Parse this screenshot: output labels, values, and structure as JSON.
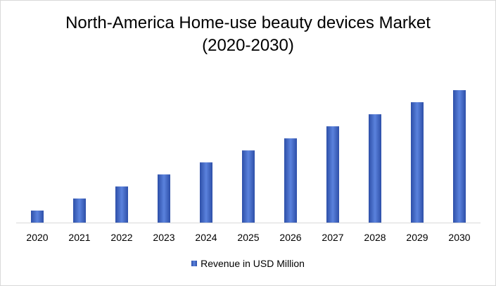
{
  "title_line1": "North-America Home-use beauty devices Market",
  "title_line2": "(2020-2030)",
  "chart_data": {
    "type": "bar",
    "title": "North-America Home-use beauty devices Market (2020-2030)",
    "categories": [
      "2020",
      "2021",
      "2022",
      "2023",
      "2024",
      "2025",
      "2026",
      "2027",
      "2028",
      "2029",
      "2030"
    ],
    "series": [
      {
        "name": "Revenue in USD Million",
        "values": [
          1.0,
          2.0,
          3.0,
          4.0,
          5.0,
          6.0,
          7.0,
          8.0,
          9.0,
          10.0,
          11.0
        ]
      }
    ],
    "xlabel": "",
    "ylabel": "",
    "ylim": [
      0,
      11.0
    ],
    "grid": false,
    "legend": "bottom",
    "colors": {
      "bar_dark": "#2d4fa8",
      "bar_light": "#5b82dd",
      "axis": "#d9d9d9"
    }
  }
}
